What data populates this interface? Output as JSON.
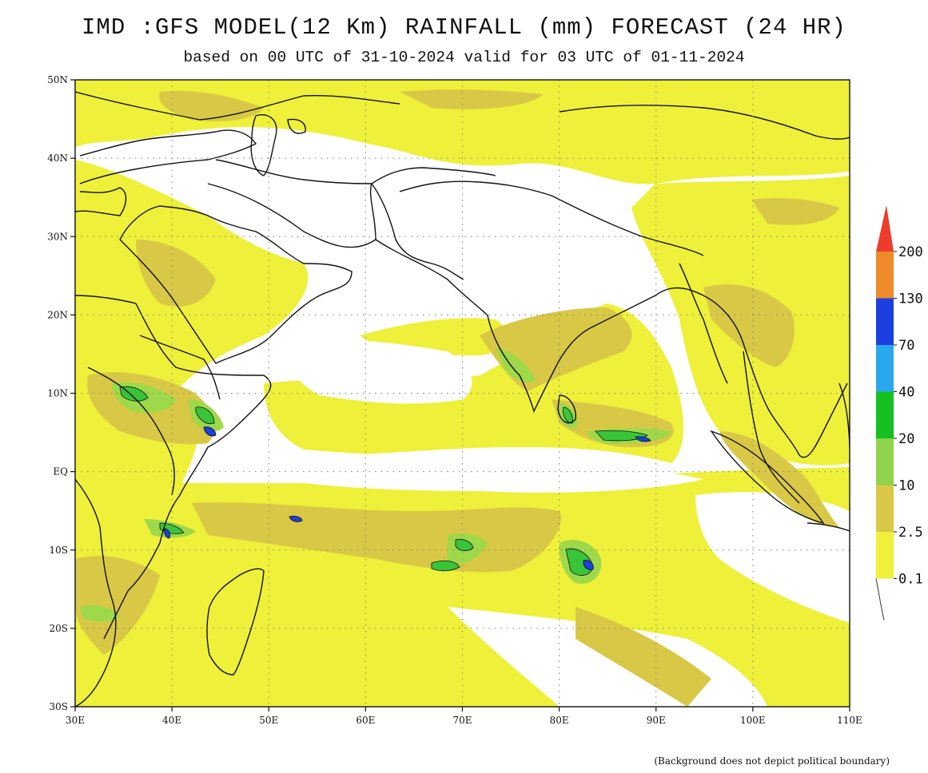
{
  "header": {
    "title": "IMD :GFS MODEL(12 Km) RAINFALL (mm) FORECAST (24 HR)",
    "subtitle": "based on 00 UTC of 31-10-2024 valid for 03 UTC of 01-11-2024"
  },
  "map": {
    "lat_labels": [
      "50N",
      "40N",
      "30N",
      "20N",
      "10N",
      "EQ",
      "10S",
      "20S",
      "30S"
    ],
    "lon_labels": [
      "30E",
      "40E",
      "50E",
      "60E",
      "70E",
      "80E",
      "90E",
      "100E",
      "110E"
    ],
    "lat_range": [
      -30,
      50
    ],
    "lon_range": [
      30,
      110
    ],
    "gridlines": "dotted",
    "colors": {
      "r0_1": "#eef03a",
      "r2_5": "#d8c846",
      "r10": "#9ed94a",
      "r20": "#39c43a",
      "r40": "#2aa8ee",
      "r70": "#1d3fe0",
      "r130": "#ee8a2a",
      "r200": "#ee3c2c"
    }
  },
  "legend": {
    "labels": [
      "200",
      "130",
      "70",
      "40",
      "20",
      "10",
      "2.5",
      "0.1"
    ],
    "colors": [
      "#ee8a2a",
      "#1d3fe0",
      "#2aa8ee",
      "#15c020",
      "#8fd44a",
      "#d8c846",
      "#eef03a"
    ],
    "top_color": "#ee3c2c"
  },
  "footnote": "(Background does not depict political boundary)"
}
